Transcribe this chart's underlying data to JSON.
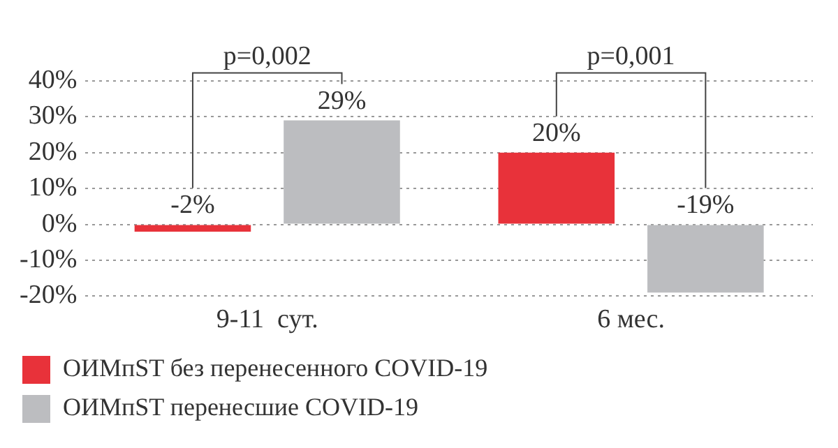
{
  "chart_data": {
    "type": "bar",
    "categories": [
      "9-11  сут.",
      "6 мес."
    ],
    "series": [
      {
        "name": "ОИМпST без перенесенного COVID-19",
        "color": "#e8323a",
        "values": [
          -2,
          20
        ],
        "value_labels": [
          "-2%",
          "20%"
        ]
      },
      {
        "name": "ОИМпST перенесшие COVID-19",
        "color": "#bcbdc0",
        "values": [
          29,
          -19
        ],
        "value_labels": [
          "29%",
          "-19%"
        ]
      }
    ],
    "ylim": [
      -20,
      40
    ],
    "yticks": [
      {
        "value": -20,
        "label": "-20%"
      },
      {
        "value": -10,
        "label": "-10%"
      },
      {
        "value": 0,
        "label": "0%"
      },
      {
        "value": 10,
        "label": "10%"
      },
      {
        "value": 20,
        "label": "20%"
      },
      {
        "value": 30,
        "label": "30%"
      },
      {
        "value": 40,
        "label": "40%"
      }
    ],
    "grid": "y",
    "legend": "bottom left",
    "annotations": [
      "p=0,002",
      "p=0,001"
    ]
  }
}
